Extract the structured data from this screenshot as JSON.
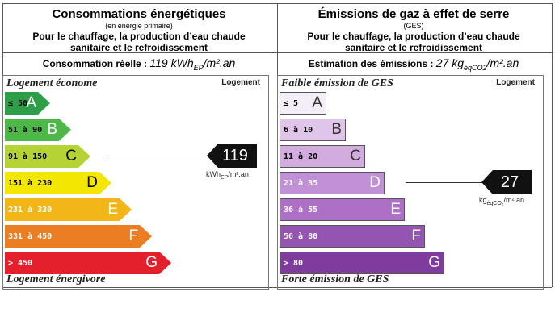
{
  "energy": {
    "title": "Consommations énergétiques",
    "subtitle": "(en énergie primaire)",
    "desc_line1": "Pour le chauffage, la production d’eau chaude",
    "desc_line2": "sanitaire et le refroidissement",
    "measure_label": "Consommation réelle :",
    "measure_value": "119 kWh",
    "measure_sub": "EP",
    "measure_tail": "/m².an",
    "top_caption": "Logement économe",
    "bottom_caption": "Logement énergivore",
    "column_label": "Logement",
    "classes": [
      {
        "range": "≤ 50",
        "letter": "A",
        "color": "#2e9e48"
      },
      {
        "range": "51 à 90",
        "letter": "B",
        "color": "#4db848"
      },
      {
        "range": "91 à 150",
        "letter": "C",
        "color": "#b5d335"
      },
      {
        "range": "151 à 230",
        "letter": "D",
        "color": "#f3e600"
      },
      {
        "range": "231 à 330",
        "letter": "E",
        "color": "#f2b619"
      },
      {
        "range": "331 à 450",
        "letter": "F",
        "color": "#eb7d22"
      },
      {
        "range": "> 450",
        "letter": "G",
        "color": "#e4202d"
      }
    ],
    "value": "119",
    "value_unit": "kWh",
    "value_unit_sub": "EP",
    "value_unit_tail": "/m².an",
    "current_class": "C"
  },
  "ges": {
    "title": "Émissions de gaz à effet de serre",
    "subtitle": "(GES)",
    "desc_line1": "Pour le chauffage, la production d’eau chaude",
    "desc_line2": "sanitaire et le refroidissement",
    "measure_label": "Estimation des émissions :",
    "measure_value": "27 kg",
    "measure_sub": "éqCO2",
    "measure_tail": "/m².an",
    "top_caption": "Faible émission de GES",
    "bottom_caption": "Forte émission de GES",
    "column_label": "Logement",
    "classes": [
      {
        "range": "≤ 5",
        "letter": "A",
        "color": "#f4eef9"
      },
      {
        "range": "6 à 10",
        "letter": "B",
        "color": "#e0c5ea"
      },
      {
        "range": "11 à 20",
        "letter": "C",
        "color": "#d2acdf"
      },
      {
        "range": "21 à 35",
        "letter": "D",
        "color": "#c190d6"
      },
      {
        "range": "36 à 55",
        "letter": "E",
        "color": "#ad70c6"
      },
      {
        "range": "56 à 80",
        "letter": "F",
        "color": "#9455b2"
      },
      {
        "range": "> 80",
        "letter": "G",
        "color": "#7f3c9e"
      }
    ],
    "value": "27",
    "value_unit": "kg",
    "value_unit_sub": "éqCO₂",
    "value_unit_tail": "/m².an",
    "current_class": "D"
  }
}
